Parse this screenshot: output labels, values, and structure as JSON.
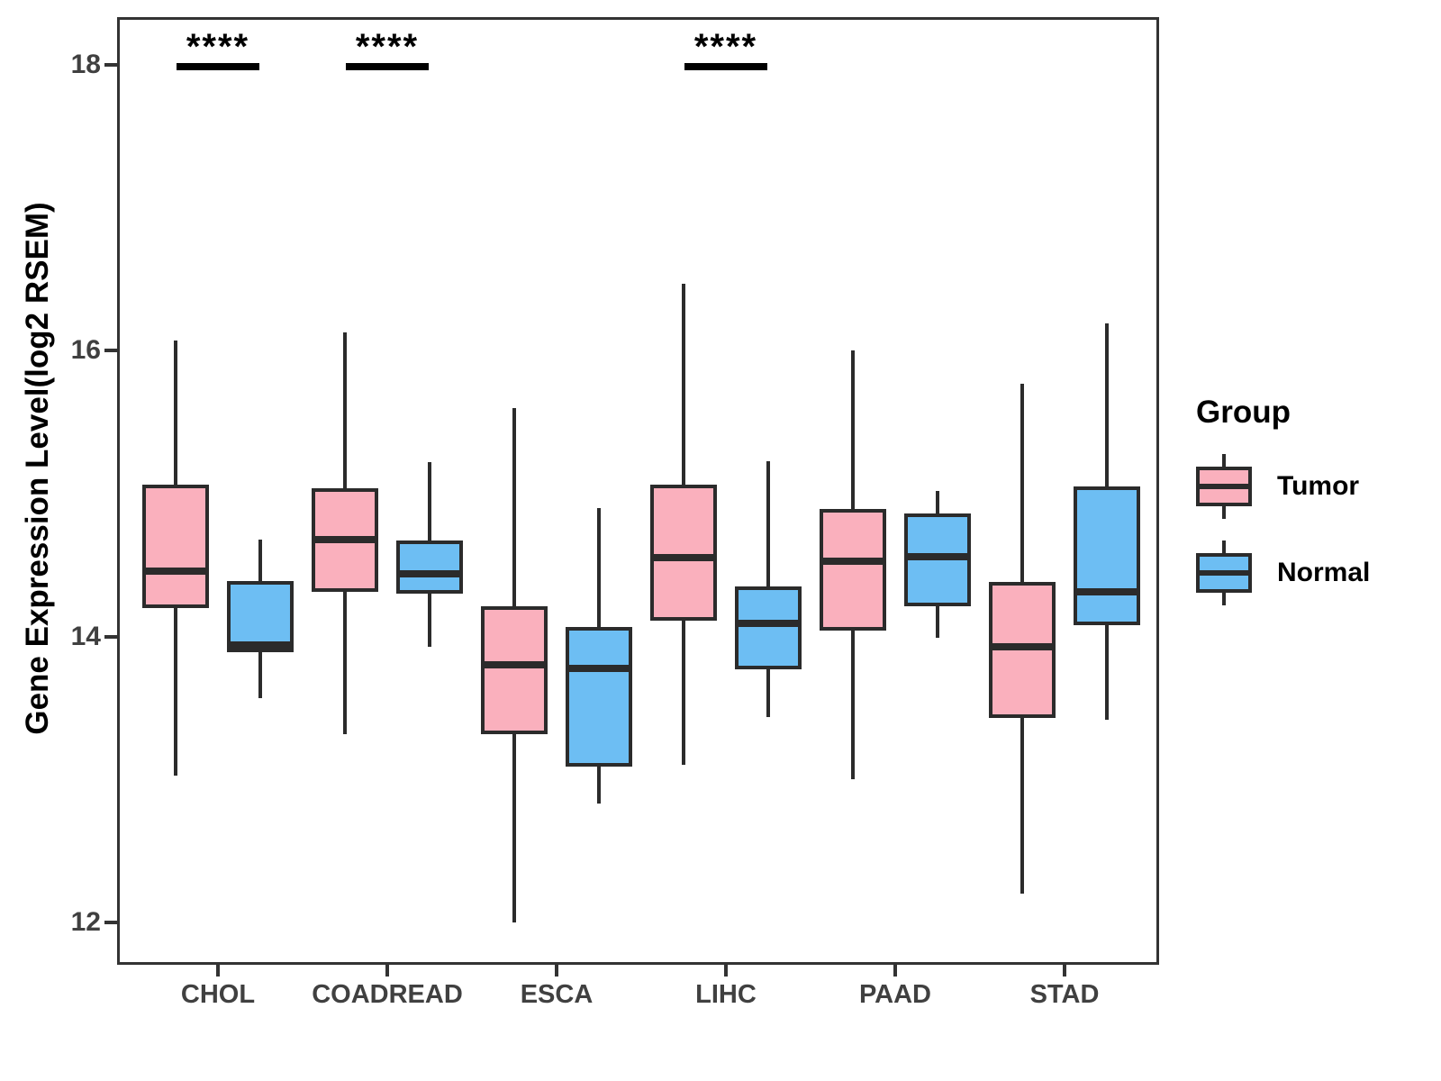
{
  "figure": {
    "y_axis_title": "Gene Expression Level(log2 RSEM)",
    "legend": {
      "title": "Group",
      "items": [
        {
          "label": "Tumor",
          "color": "#FAB0BD"
        },
        {
          "label": "Normal",
          "color": "#6DBEF3"
        }
      ]
    }
  },
  "chart_data": {
    "type": "boxplot",
    "title": "",
    "xlabel": "",
    "ylabel": "Gene Expression Level(log2 RSEM)",
    "ylim": [
      11.7,
      18.33
    ],
    "yticks": [
      18,
      16,
      14,
      12
    ],
    "grid": false,
    "legend_position": "right",
    "categories": [
      "CHOL",
      "COADREAD",
      "ESCA",
      "LIHC",
      "PAAD",
      "STAD"
    ],
    "groups": [
      "Tumor",
      "Normal"
    ],
    "colors": {
      "tumor_fill": "#FAB0BD",
      "normal_fill": "#6DBEF3",
      "stroke": "#2B2B2B",
      "axis_text": "#404040",
      "panel_border": "#333333",
      "annotation": "#000000"
    },
    "series": [
      {
        "name": "Tumor",
        "boxes": [
          {
            "min": 13.03,
            "q1": 14.2,
            "med": 14.46,
            "q3": 15.06,
            "max": 16.07
          },
          {
            "min": 13.32,
            "q1": 14.31,
            "med": 14.68,
            "q3": 15.04,
            "max": 16.13
          },
          {
            "min": 12.0,
            "q1": 13.32,
            "med": 13.8,
            "q3": 14.21,
            "max": 15.6
          },
          {
            "min": 13.1,
            "q1": 14.11,
            "med": 14.55,
            "q3": 15.06,
            "max": 16.47
          },
          {
            "min": 13.0,
            "q1": 14.04,
            "med": 14.53,
            "q3": 14.89,
            "max": 16.0
          },
          {
            "min": 12.2,
            "q1": 13.43,
            "med": 13.93,
            "q3": 14.38,
            "max": 15.77
          }
        ]
      },
      {
        "name": "Normal",
        "boxes": [
          {
            "min": 13.57,
            "q1": 13.89,
            "med": 13.94,
            "q3": 14.39,
            "max": 14.68
          },
          {
            "min": 13.93,
            "q1": 14.3,
            "med": 14.44,
            "q3": 14.67,
            "max": 15.22
          },
          {
            "min": 12.83,
            "q1": 13.09,
            "med": 13.78,
            "q3": 14.07,
            "max": 14.9
          },
          {
            "min": 13.44,
            "q1": 13.77,
            "med": 14.09,
            "q3": 14.35,
            "max": 15.23
          },
          {
            "min": 13.99,
            "q1": 14.21,
            "med": 14.56,
            "q3": 14.86,
            "max": 15.02
          },
          {
            "min": 13.42,
            "q1": 14.08,
            "med": 14.31,
            "q3": 15.05,
            "max": 16.19
          }
        ]
      }
    ],
    "significance": [
      {
        "category": "CHOL",
        "label": "****"
      },
      {
        "category": "COADREAD",
        "label": "****"
      },
      {
        "category": "LIHC",
        "label": "****"
      }
    ]
  }
}
